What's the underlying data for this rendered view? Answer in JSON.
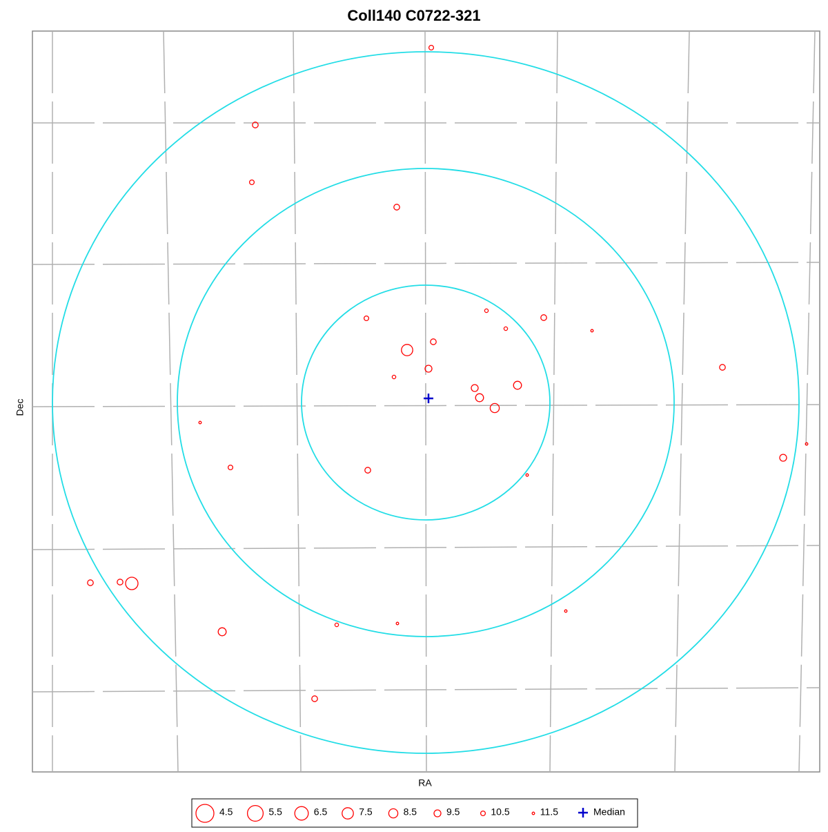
{
  "chart_data": {
    "type": "scatter",
    "title": "Coll140  C0722-321",
    "x_label": "RA",
    "y_label": "Dec",
    "color": "#ff0000",
    "xlim": [
      47,
      1188
    ],
    "ylim": [
      1118,
      45
    ],
    "x": [
      625,
      370,
      365,
      575,
      531,
      705,
      733,
      788,
      858,
      628,
      590,
      621,
      571,
      1047,
      688,
      750,
      695,
      717,
      290,
      1169,
      1135,
      334,
      533,
      764,
      131,
      174,
      191,
      820,
      322,
      488,
      576,
      456
    ],
    "y": [
      69,
      181,
      264,
      300,
      461,
      450,
      476,
      460,
      479,
      495,
      507,
      534,
      546,
      532,
      562,
      558,
      576,
      591,
      612,
      643,
      663,
      677,
      681,
      688,
      844,
      843,
      845,
      885,
      915,
      905,
      903,
      1012
    ],
    "values": [
      10.5,
      10,
      10.5,
      10,
      10.5,
      11,
      11,
      10,
      11.5,
      10,
      7.5,
      9.5,
      11,
      10,
      9.5,
      9,
      9,
      8.5,
      11.5,
      11.5,
      9.5,
      10.5,
      10,
      11.5,
      10,
      10,
      7,
      11.5,
      9,
      11,
      11.5,
      10
    ],
    "size_legend": [
      4.5,
      5.5,
      6.5,
      7.5,
      8.5,
      9.5,
      10.5,
      11.5
    ],
    "median": {
      "name": "Median",
      "x": 621,
      "y": 577,
      "color": "#0000cc"
    }
  }
}
